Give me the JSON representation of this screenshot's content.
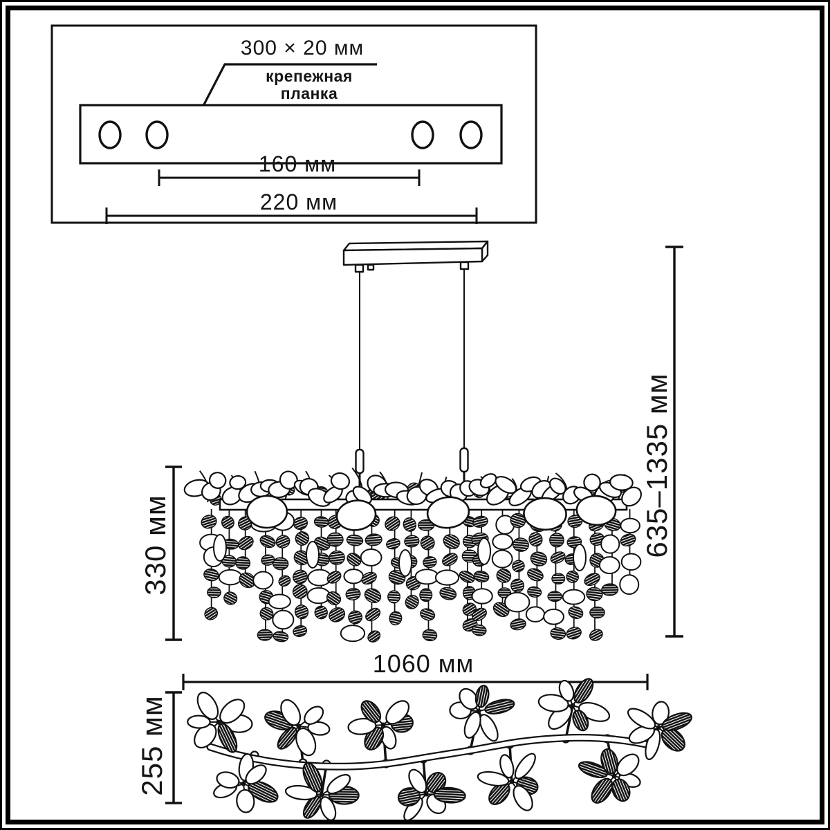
{
  "mounting_plate_box": {
    "size_label": "300 × 20 мм",
    "part_label_line1": "крепежная",
    "part_label_line2": "планка",
    "hole_spacing_label": "160 мм",
    "plate_length_label": "220 мм"
  },
  "side_view": {
    "body_height_label": "330 мм",
    "total_height_label": "635–1335 мм"
  },
  "top_view": {
    "length_label": "1060 мм",
    "depth_label": "255 мм"
  },
  "colors": {
    "ink": "#111111",
    "background": "#ffffff"
  }
}
